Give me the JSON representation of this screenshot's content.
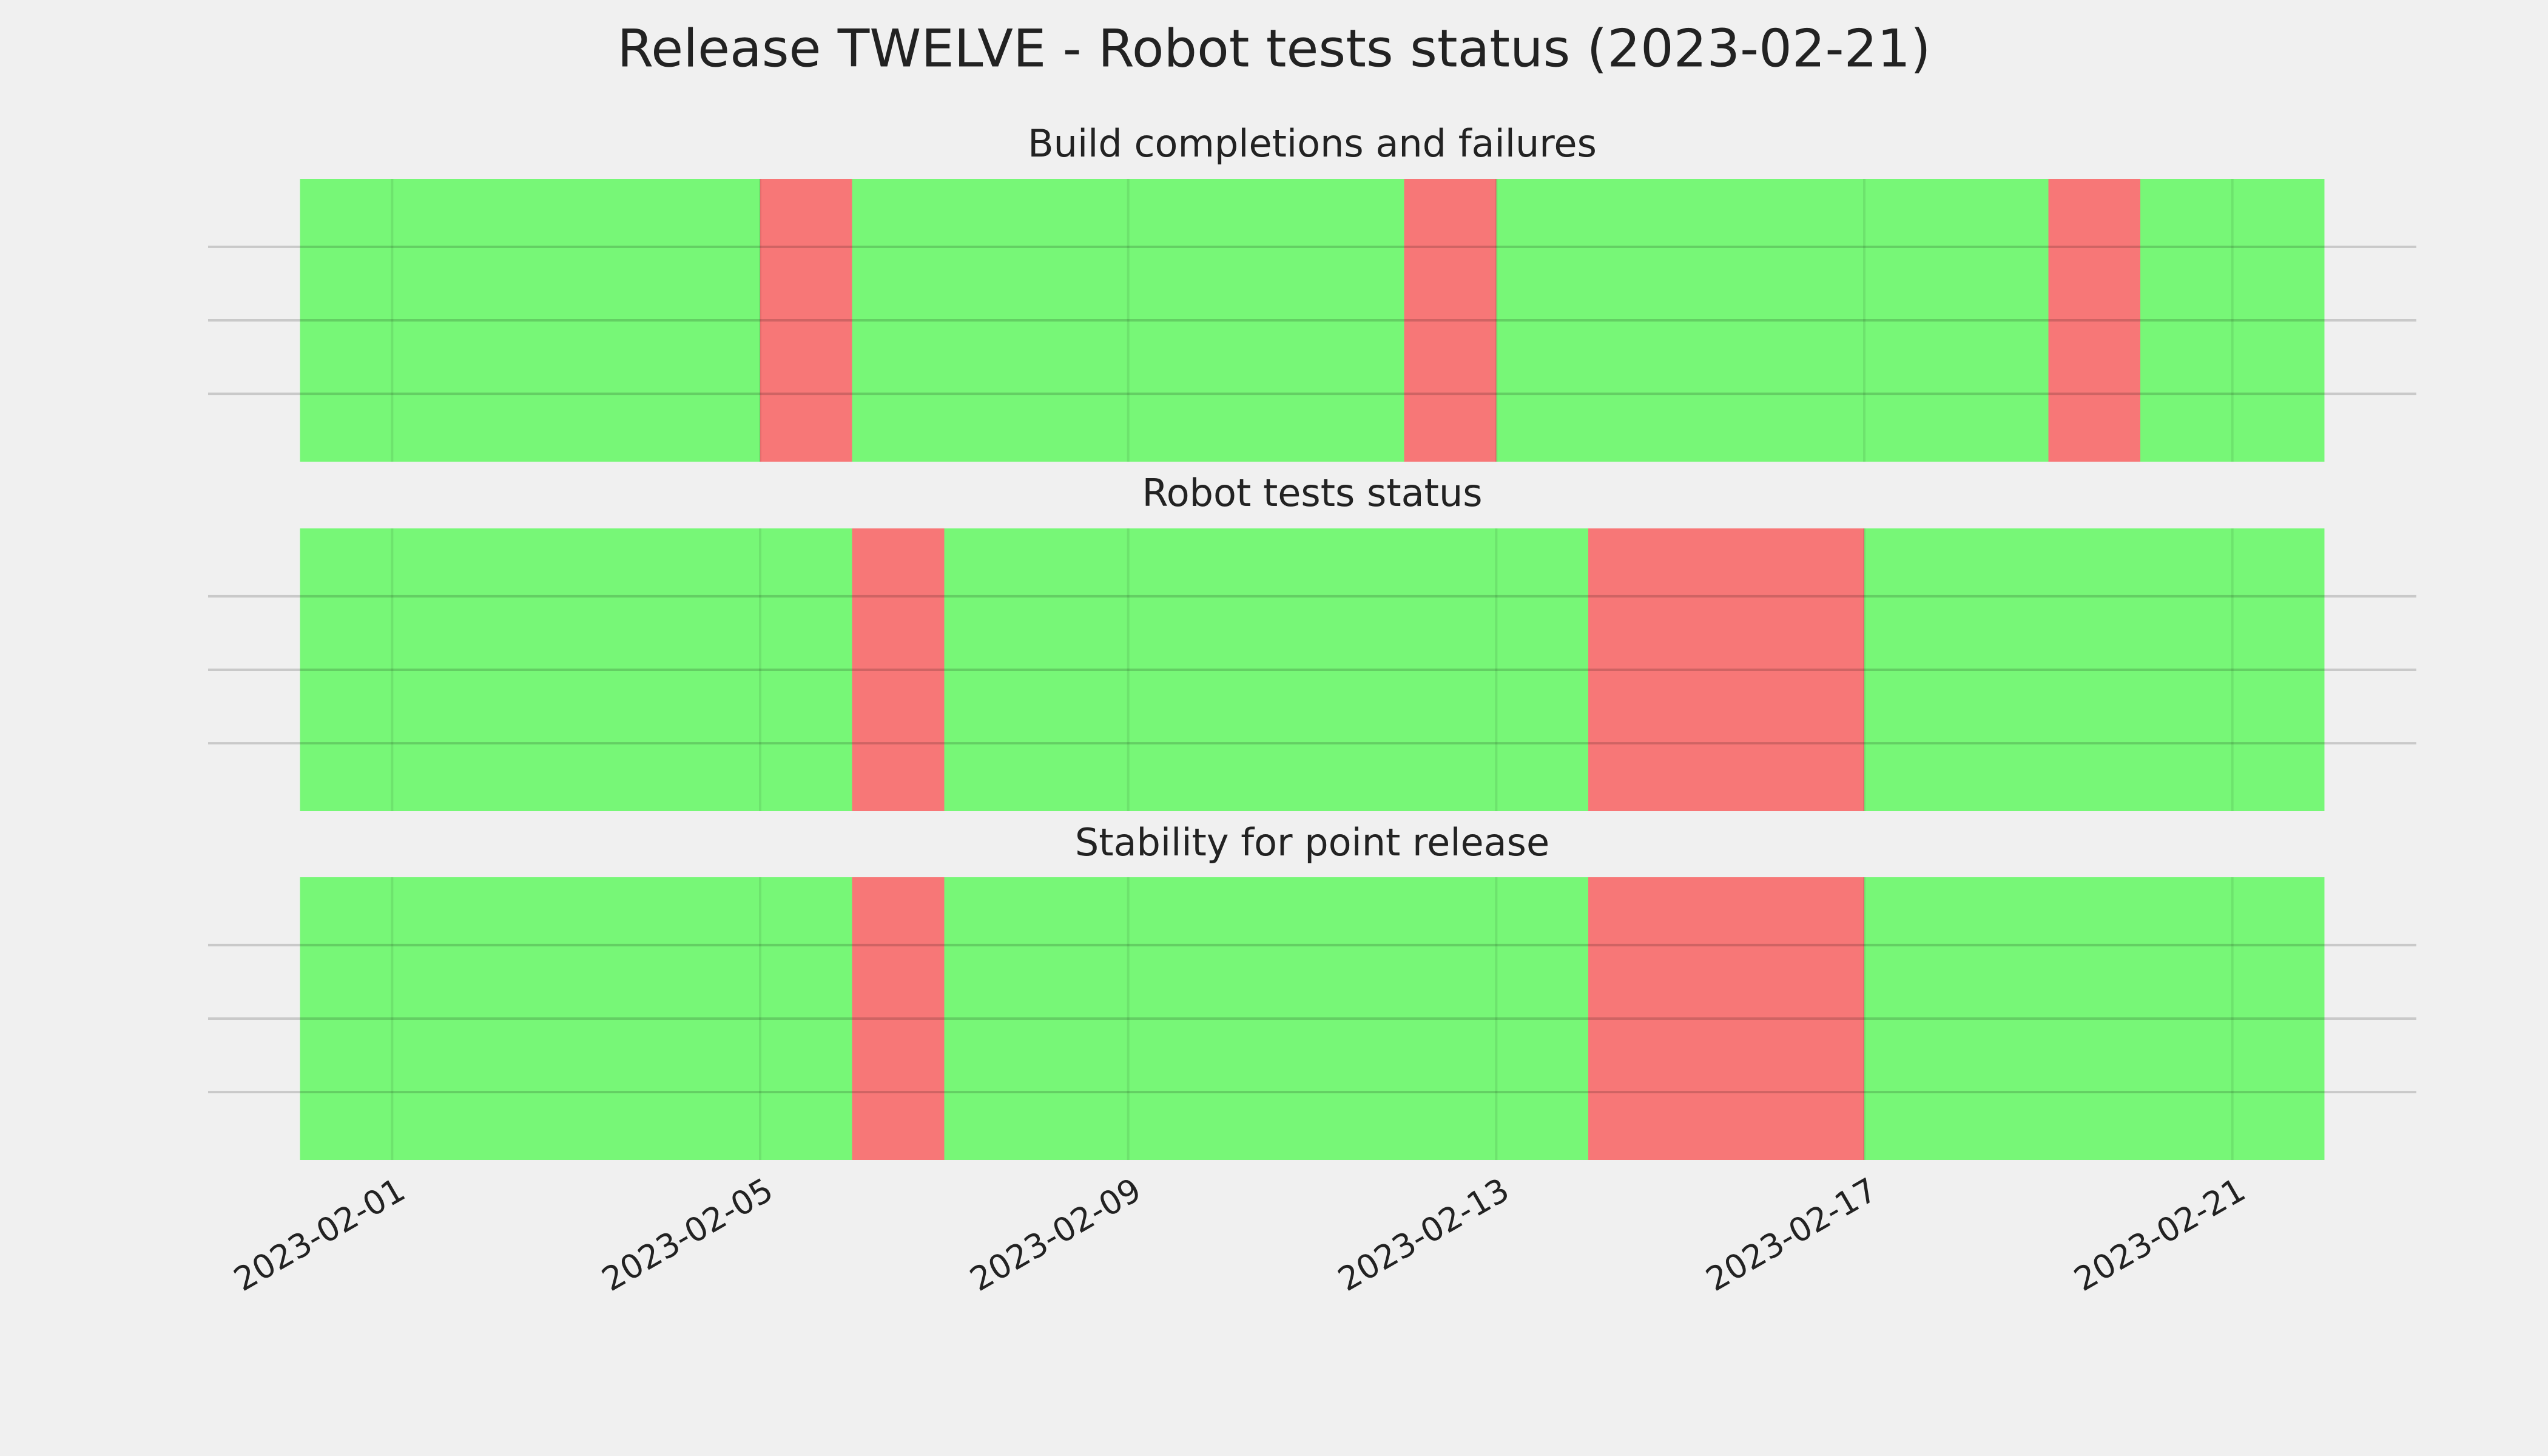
{
  "title": "Release TWELVE - Robot tests status (2023-02-21)",
  "chart_data": [
    {
      "type": "timeline",
      "title": "Build completions and failures",
      "x": [
        "2023-01-31",
        "2023-02-01",
        "2023-02-02",
        "2023-02-03",
        "2023-02-04",
        "2023-02-05",
        "2023-02-06",
        "2023-02-07",
        "2023-02-08",
        "2023-02-09",
        "2023-02-10",
        "2023-02-11",
        "2023-02-12",
        "2023-02-13",
        "2023-02-14",
        "2023-02-15",
        "2023-02-16",
        "2023-02-17",
        "2023-02-18",
        "2023-02-19",
        "2023-02-20",
        "2023-02-21"
      ],
      "colors": [
        "#77f777",
        "#77f777",
        "#77f777",
        "#77f777",
        "#77f777",
        "#f77777",
        "#77f777",
        "#77f777",
        "#77f777",
        "#77f777",
        "#77f777",
        "#77f777",
        "#f77777",
        "#77f777",
        "#77f777",
        "#77f777",
        "#77f777",
        "#77f777",
        "#77f777",
        "#f77777",
        "#77f777",
        "#77f777"
      ],
      "xlim": [
        "2023-01-30",
        "2023-02-23"
      ],
      "xticks": [
        "2023-02-01",
        "2023-02-05",
        "2023-02-09",
        "2023-02-13",
        "2023-02-17",
        "2023-02-21"
      ]
    },
    {
      "type": "timeline",
      "title": "Robot tests status",
      "x": [
        "2023-01-31",
        "2023-02-01",
        "2023-02-02",
        "2023-02-03",
        "2023-02-04",
        "2023-02-05",
        "2023-02-06",
        "2023-02-07",
        "2023-02-08",
        "2023-02-09",
        "2023-02-10",
        "2023-02-11",
        "2023-02-12",
        "2023-02-13",
        "2023-02-14",
        "2023-02-15",
        "2023-02-16",
        "2023-02-17",
        "2023-02-18",
        "2023-02-19",
        "2023-02-20",
        "2023-02-21"
      ],
      "colors": [
        "#77f777",
        "#77f777",
        "#77f777",
        "#77f777",
        "#77f777",
        "#77f777",
        "#f77777",
        "#77f777",
        "#77f777",
        "#77f777",
        "#77f777",
        "#77f777",
        "#77f777",
        "#77f777",
        "#f77777",
        "#f77777",
        "#f77777",
        "#77f777",
        "#77f777",
        "#77f777",
        "#77f777",
        "#77f777"
      ],
      "xlim": [
        "2023-01-30",
        "2023-02-23"
      ],
      "xticks": [
        "2023-02-01",
        "2023-02-05",
        "2023-02-09",
        "2023-02-13",
        "2023-02-17",
        "2023-02-21"
      ]
    },
    {
      "type": "timeline",
      "title": "Stability for point release",
      "x": [
        "2023-01-31",
        "2023-02-01",
        "2023-02-02",
        "2023-02-03",
        "2023-02-04",
        "2023-02-05",
        "2023-02-06",
        "2023-02-07",
        "2023-02-08",
        "2023-02-09",
        "2023-02-10",
        "2023-02-11",
        "2023-02-12",
        "2023-02-13",
        "2023-02-14",
        "2023-02-15",
        "2023-02-16",
        "2023-02-17",
        "2023-02-18",
        "2023-02-19",
        "2023-02-20",
        "2023-02-21"
      ],
      "colors": [
        "#77f777",
        "#77f777",
        "#77f777",
        "#77f777",
        "#77f777",
        "#77f777",
        "#f77777",
        "#77f777",
        "#77f777",
        "#77f777",
        "#77f777",
        "#77f777",
        "#77f777",
        "#77f777",
        "#f77777",
        "#f77777",
        "#f77777",
        "#77f777",
        "#77f777",
        "#77f777",
        "#77f777",
        "#77f777"
      ],
      "xlim": [
        "2023-01-30",
        "2023-02-23"
      ],
      "xticks": [
        "2023-02-01",
        "2023-02-05",
        "2023-02-09",
        "2023-02-13",
        "2023-02-17",
        "2023-02-21"
      ]
    }
  ]
}
